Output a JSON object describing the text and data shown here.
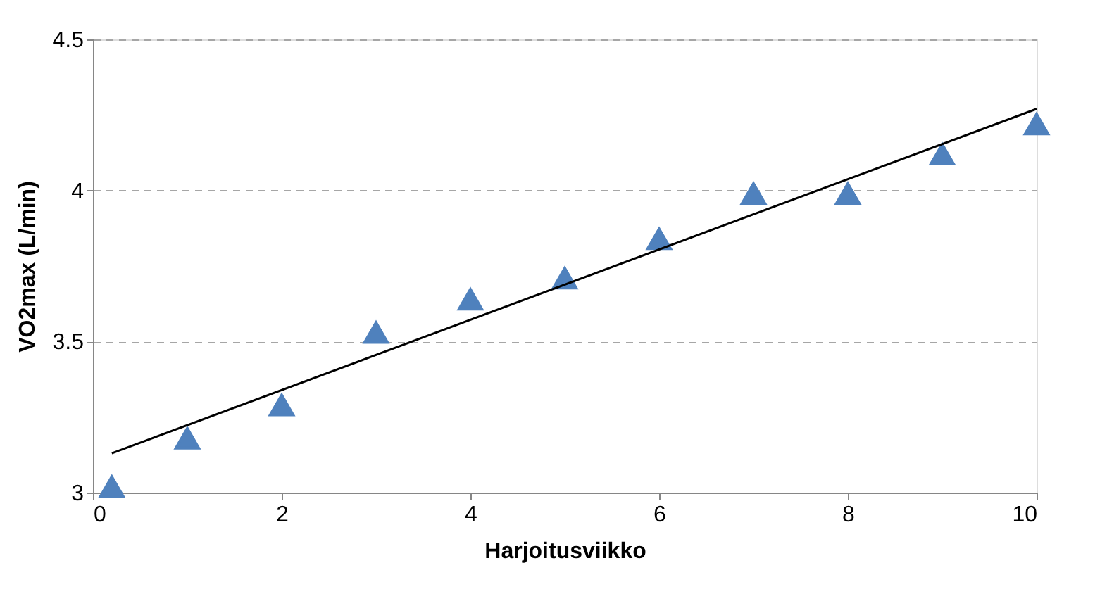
{
  "chart_data": {
    "type": "scatter",
    "xlabel": "Harjoitusviikko",
    "ylabel": "VO2max (L/min)",
    "xlim": [
      0,
      10
    ],
    "xticks": [
      0,
      2,
      4,
      6,
      8,
      10
    ],
    "ylim": [
      3,
      4.5
    ],
    "yticks": [
      3,
      3.5,
      4,
      4.5
    ],
    "grid": "y",
    "series": [
      {
        "marker": "triangle",
        "color": "#4f81bd",
        "x": [
          0.2,
          1,
          2,
          3,
          4,
          5,
          6,
          7,
          8,
          9,
          10
        ],
        "values": [
          3.02,
          3.18,
          3.29,
          3.53,
          3.64,
          3.71,
          3.84,
          3.99,
          3.99,
          4.12,
          4.22
        ]
      },
      {
        "type": "line",
        "color": "#000000",
        "x": [
          0.2,
          10
        ],
        "values": [
          3.13,
          4.27
        ]
      }
    ]
  }
}
